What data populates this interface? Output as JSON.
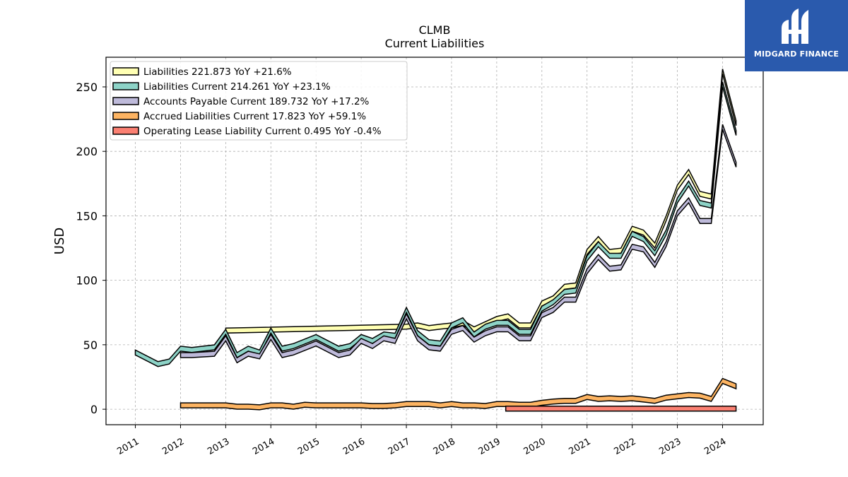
{
  "chart_data": {
    "type": "area",
    "title": "CLMB",
    "subtitle": "Current  Liabilities",
    "ylabel": "USD",
    "xlabel": "",
    "ylim": [
      -12,
      273
    ],
    "xlim": [
      2010.35,
      2024.9
    ],
    "yticks": [
      0,
      50,
      100,
      150,
      200,
      250
    ],
    "xticks": [
      "2011",
      "2012",
      "2013",
      "2014",
      "2015",
      "2016",
      "2017",
      "2018",
      "2019",
      "2020",
      "2021",
      "2022",
      "2023",
      "2024"
    ],
    "grid": true,
    "legend_position": "top-left",
    "series": [
      {
        "name": "Liabilities",
        "legend": "Liabilities  221.873 YoY +21.6%",
        "color": "#ffffb3",
        "x": [
          2013.0,
          2017.0,
          2017.25,
          2017.5,
          2017.75,
          2018.0,
          2018.25,
          2018.5,
          2018.75,
          2019.0,
          2019.25,
          2019.5,
          2019.75,
          2020.0,
          2020.25,
          2020.5,
          2020.75,
          2021.0,
          2021.25,
          2021.5,
          2021.75,
          2022.0,
          2022.25,
          2022.5,
          2022.75,
          2023.0,
          2023.25,
          2023.5,
          2023.75,
          2024.0,
          2024.3
        ],
        "y": [
          61,
          64,
          65,
          63,
          64,
          65,
          67,
          62,
          66,
          70,
          72,
          65,
          65,
          82,
          86,
          95,
          96,
          122,
          132,
          122,
          123,
          140,
          137,
          127,
          148,
          172,
          184,
          167,
          165,
          262,
          221.9
        ]
      },
      {
        "name": "Liabilities Current",
        "legend": "Liabilities Current  214.261 YoY +23.1%",
        "color": "#8dd3c7",
        "x": [
          2011.0,
          2011.5,
          2011.75,
          2012.0,
          2012.25,
          2012.75,
          2013.0,
          2013.25,
          2013.5,
          2013.75,
          2014.0,
          2014.25,
          2014.5,
          2015.0,
          2015.5,
          2015.75,
          2016.0,
          2016.25,
          2016.5,
          2016.75,
          2017.0,
          2017.25,
          2017.5,
          2017.75,
          2018.0,
          2018.25,
          2018.5,
          2018.75,
          2019.0,
          2019.25,
          2019.5,
          2019.75,
          2020.0,
          2020.25,
          2020.5,
          2020.75,
          2021.0,
          2021.25,
          2021.5,
          2021.75,
          2022.0,
          2022.25,
          2022.5,
          2022.75,
          2023.0,
          2023.25,
          2023.5,
          2023.75,
          2024.0,
          2024.3
        ],
        "y": [
          44,
          35,
          37,
          47,
          46,
          48,
          60,
          42,
          47,
          44,
          61,
          47,
          49,
          56,
          47,
          49,
          56,
          53,
          58,
          57,
          77,
          59,
          52,
          51,
          65,
          69,
          58,
          64,
          67,
          67,
          60,
          60,
          78,
          83,
          91,
          92,
          117,
          128,
          119,
          119,
          136,
          132,
          121,
          137,
          162,
          175,
          160,
          158,
          252,
          214.3
        ]
      },
      {
        "name": "Accounts Payable Current",
        "legend": "Accounts Payable Current  189.732 YoY +17.2%",
        "color": "#bebada",
        "x": [
          2012.0,
          2012.25,
          2012.75,
          2013.0,
          2013.25,
          2013.5,
          2013.75,
          2014.0,
          2014.25,
          2014.5,
          2015.0,
          2015.5,
          2015.75,
          2016.0,
          2016.25,
          2016.5,
          2016.75,
          2017.0,
          2017.25,
          2017.5,
          2017.75,
          2018.0,
          2018.25,
          2018.5,
          2018.75,
          2019.0,
          2019.25,
          2019.5,
          2019.75,
          2020.0,
          2020.25,
          2020.5,
          2020.75,
          2021.0,
          2021.25,
          2021.5,
          2021.75,
          2022.0,
          2022.25,
          2022.5,
          2022.75,
          2023.0,
          2023.25,
          2023.5,
          2023.75,
          2024.0,
          2024.3
        ],
        "y": [
          42,
          42,
          43,
          55,
          38,
          43,
          41,
          56,
          42,
          44,
          51,
          42,
          44,
          53,
          49,
          55,
          53,
          72,
          55,
          48,
          47,
          60,
          63,
          54,
          59,
          62,
          62,
          55,
          55,
          73,
          77,
          85,
          85,
          107,
          118,
          109,
          110,
          126,
          124,
          112,
          128,
          152,
          162,
          146,
          146,
          219,
          189.7
        ]
      },
      {
        "name": "Accrued Liabilities Current",
        "legend": "Accrued Liabilities Current  17.823 YoY +59.1%",
        "color": "#fdb462",
        "x": [
          2012.0,
          2013.0,
          2013.25,
          2013.5,
          2013.75,
          2014.0,
          2014.25,
          2014.5,
          2014.75,
          2015.0,
          2015.25,
          2015.5,
          2015.75,
          2016.0,
          2016.25,
          2016.5,
          2016.75,
          2017.0,
          2017.25,
          2017.5,
          2017.75,
          2018.0,
          2018.25,
          2018.5,
          2018.75,
          2019.0,
          2019.25,
          2019.5,
          2019.75,
          2020.0,
          2020.25,
          2020.5,
          2020.75,
          2021.0,
          2021.25,
          2021.5,
          2021.75,
          2022.0,
          2022.25,
          2022.5,
          2022.75,
          2023.0,
          2023.25,
          2023.5,
          2023.75,
          2024.0,
          2024.3
        ],
        "y": [
          3,
          3,
          2,
          2,
          1.5,
          3,
          3,
          2,
          3.5,
          3,
          3,
          3,
          3,
          3,
          2.5,
          2.5,
          3,
          4,
          4,
          4,
          3,
          4,
          3,
          3,
          2.5,
          4,
          4,
          3.5,
          3.5,
          5,
          6,
          6.5,
          6.5,
          9.5,
          8,
          8.5,
          8,
          8.5,
          7.5,
          6.5,
          9,
          10,
          11,
          10.5,
          8,
          22,
          17.8
        ]
      },
      {
        "name": "Operating Lease Liability Current",
        "legend": "Operating Lease Liability Current  0.495 YoY -0.4%",
        "color": "#fb8072",
        "x": [
          2019.2,
          2024.3
        ],
        "y": [
          0.5,
          0.495
        ]
      }
    ]
  },
  "logo": {
    "name": "midgard-finance-logo",
    "text": "MIDGARD FINANCE"
  }
}
